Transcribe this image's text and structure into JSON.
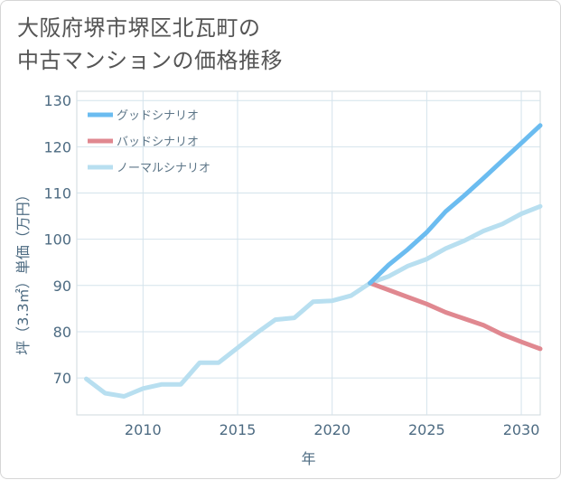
{
  "title_lines": [
    "大阪府堺市堺区北瓦町の",
    "中古マンションの価格推移"
  ],
  "chart_data": {
    "type": "line",
    "title": "大阪府堺市堺区北瓦町の中古マンションの価格推移",
    "xlabel": "年",
    "ylabel": "坪（3.3㎡）単価（万円）",
    "xlim": [
      2006.5,
      2031
    ],
    "ylim": [
      62,
      132
    ],
    "xticks": [
      2010,
      2015,
      2020,
      2025,
      2030
    ],
    "yticks": [
      70,
      80,
      90,
      100,
      110,
      120,
      130
    ],
    "grid": true,
    "legend_position": "top-left",
    "series": [
      {
        "name": "グッドシナリオ",
        "color": "#6bbcf0",
        "x": [
          2022,
          2023,
          2024,
          2025,
          2026,
          2027,
          2028,
          2029,
          2030,
          2031
        ],
        "values": [
          90.5,
          94.5,
          97.8,
          101.5,
          106,
          109.5,
          113.2,
          117,
          120.8,
          124.6
        ]
      },
      {
        "name": "バッドシナリオ",
        "color": "#e08890",
        "x": [
          2022,
          2023,
          2024,
          2025,
          2026,
          2027,
          2028,
          2029,
          2030,
          2031
        ],
        "values": [
          90.5,
          89,
          87.5,
          86,
          84.2,
          82.8,
          81.4,
          79.4,
          77.8,
          76.3
        ]
      },
      {
        "name": "ノーマルシナリオ",
        "color": "#b8dff0",
        "x": [
          2007,
          2008,
          2009,
          2010,
          2011,
          2012,
          2013,
          2014,
          2015,
          2016,
          2017,
          2018,
          2019,
          2020,
          2021,
          2022,
          2023,
          2024,
          2025,
          2026,
          2027,
          2028,
          2029,
          2030,
          2031
        ],
        "values": [
          69.8,
          66.7,
          66,
          67.7,
          68.6,
          68.6,
          73.3,
          73.3,
          76.5,
          79.7,
          82.6,
          83,
          86.5,
          86.7,
          87.8,
          90.5,
          92,
          94.2,
          95.7,
          98,
          99.7,
          101.8,
          103.3,
          105.5,
          107.1
        ]
      }
    ]
  }
}
